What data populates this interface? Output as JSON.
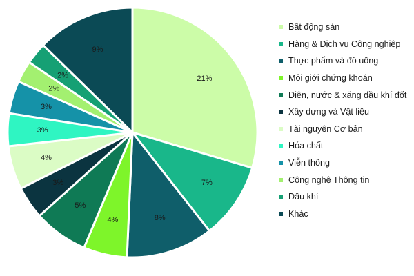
{
  "chart_data": {
    "type": "pie",
    "legend_position": "right",
    "slices": [
      {
        "name": "Bất động sản",
        "label": "21%",
        "value": 21,
        "color": "#ccfca8"
      },
      {
        "name": "Hàng & Dịch vụ Công nghiệp",
        "label": "7%",
        "value": 7,
        "color": "#19b78a"
      },
      {
        "name": "Thực phẩm và đồ uống",
        "label": "8%",
        "value": 8,
        "color": "#0f5e6a"
      },
      {
        "name": "Môi giới chứng khoán",
        "label": "4%",
        "value": 4,
        "color": "#7ef52a"
      },
      {
        "name": "Điện, nước & xăng dầu khí đốt",
        "label": "5%",
        "value": 5,
        "color": "#0f7a55"
      },
      {
        "name": "Xây dựng và Vật liệu",
        "label": "3%",
        "value": 3,
        "color": "#0b3440"
      },
      {
        "name": "Tài nguyên Cơ bản",
        "label": "4%",
        "value": 4,
        "color": "#dbfcc5"
      },
      {
        "name": "Hóa chất",
        "label": "3%",
        "value": 3,
        "color": "#2ff5c2"
      },
      {
        "name": "Viễn thông",
        "label": "3%",
        "value": 3,
        "color": "#1592a8"
      },
      {
        "name": "Công nghệ Thông tin",
        "label": "2%",
        "value": 2,
        "color": "#a3f070"
      },
      {
        "name": "Dầu khí",
        "label": "2%",
        "value": 2,
        "color": "#16a074"
      },
      {
        "name": "Khác",
        "label": "9%",
        "value": 9,
        "color": "#0b4a55"
      }
    ]
  }
}
